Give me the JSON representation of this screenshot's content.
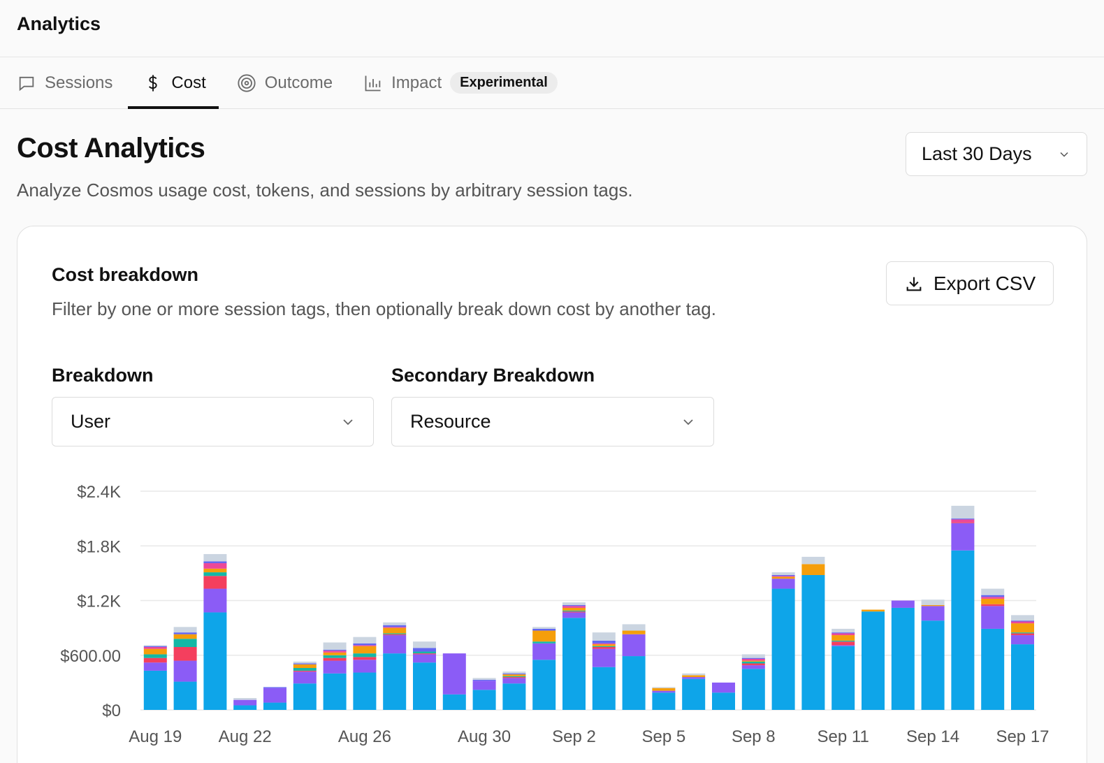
{
  "header": {
    "title": "Analytics"
  },
  "tabs": [
    {
      "label": "Sessions",
      "icon": "message-square-icon"
    },
    {
      "label": "Cost",
      "icon": "dollar-icon"
    },
    {
      "label": "Outcome",
      "icon": "target-icon"
    },
    {
      "label": "Impact",
      "icon": "bar-chart-icon",
      "badge": "Experimental"
    }
  ],
  "page": {
    "title": "Cost Analytics",
    "subtitle": "Analyze Cosmos usage cost, tokens, and sessions by arbitrary session tags.",
    "range": "Last 30 Days"
  },
  "card": {
    "title": "Cost breakdown",
    "subtitle": "Filter by one or more session tags, then optionally break down cost by another tag.",
    "export_label": "Export CSV",
    "breakdown_label": "Breakdown",
    "breakdown_value": "User",
    "secondary_label": "Secondary Breakdown",
    "secondary_value": "Resource"
  },
  "colors": {
    "blue": "#0ea5e9",
    "purple": "#8b5cf6",
    "red": "#f43f5e",
    "teal": "#14b8a6",
    "orange": "#f59e0b",
    "pink": "#ec4899",
    "indigo": "#6366f1",
    "gray": "#cbd5e1"
  },
  "chart_data": {
    "type": "bar",
    "stacked": true,
    "yticks": [
      "$0",
      "$600.00",
      "$1.2K",
      "$1.8K",
      "$2.4K"
    ],
    "ylim": [
      0,
      2400
    ],
    "grid": true,
    "xticks": [
      "Aug 19",
      "Aug 22",
      "Aug 26",
      "Aug 30",
      "Sep 2",
      "Sep 5",
      "Sep 8",
      "Sep 11",
      "Sep 14",
      "Sep 17"
    ],
    "xtick_index": [
      0,
      3,
      7,
      11,
      14,
      17,
      20,
      23,
      26,
      29
    ],
    "categories": [
      "Aug 19",
      "Aug 20",
      "Aug 21",
      "Aug 22",
      "Aug 23",
      "Aug 24",
      "Aug 25",
      "Aug 26",
      "Aug 27",
      "Aug 28",
      "Aug 29",
      "Aug 30",
      "Aug 31",
      "Sep 1",
      "Sep 2",
      "Sep 3",
      "Sep 4",
      "Sep 5",
      "Sep 6",
      "Sep 7",
      "Sep 8",
      "Sep 9",
      "Sep 10",
      "Sep 11",
      "Sep 12",
      "Sep 13",
      "Sep 14",
      "Sep 15",
      "Sep 16",
      "Sep 17"
    ],
    "series_colors": [
      "blue",
      "purple",
      "red",
      "teal",
      "orange",
      "pink",
      "indigo",
      "gray"
    ],
    "series": [
      {
        "values": [
          430,
          310,
          1070,
          50,
          80,
          290,
          400,
          410,
          620,
          520,
          170,
          220,
          290,
          550,
          1010,
          470,
          590,
          190,
          340,
          190,
          450,
          1330,
          1480,
          700,
          1080,
          1120,
          980,
          1750,
          890,
          720
        ]
      },
      {
        "values": [
          90,
          230,
          260,
          60,
          160,
          130,
          140,
          140,
          200,
          90,
          450,
          100,
          60,
          180,
          60,
          200,
          240,
          20,
          20,
          110,
          40,
          110,
          0,
          10,
          0,
          80,
          160,
          300,
          250,
          100
        ]
      },
      {
        "values": [
          50,
          150,
          140,
          0,
          0,
          10,
          30,
          30,
          10,
          10,
          0,
          0,
          10,
          0,
          10,
          20,
          0,
          0,
          0,
          0,
          20,
          0,
          0,
          40,
          0,
          0,
          0,
          10,
          20,
          20
        ]
      },
      {
        "values": [
          40,
          90,
          40,
          0,
          0,
          30,
          30,
          40,
          10,
          20,
          0,
          0,
          10,
          20,
          10,
          10,
          0,
          0,
          0,
          0,
          20,
          0,
          0,
          10,
          0,
          0,
          0,
          0,
          0,
          10
        ]
      },
      {
        "values": [
          60,
          50,
          40,
          0,
          0,
          40,
          30,
          80,
          60,
          0,
          0,
          0,
          20,
          120,
          30,
          20,
          40,
          30,
          20,
          0,
          10,
          20,
          120,
          60,
          20,
          0,
          10,
          0,
          60,
          100
        ]
      },
      {
        "values": [
          20,
          0,
          60,
          0,
          0,
          0,
          20,
          10,
          10,
          0,
          0,
          0,
          0,
          0,
          20,
          10,
          0,
          0,
          0,
          0,
          20,
          10,
          0,
          20,
          0,
          0,
          0,
          30,
          20,
          20
        ]
      },
      {
        "values": [
          10,
          20,
          20,
          0,
          10,
          10,
          10,
          20,
          20,
          40,
          0,
          10,
          10,
          20,
          10,
          30,
          0,
          0,
          0,
          0,
          10,
          10,
          0,
          10,
          0,
          0,
          0,
          10,
          20,
          10
        ]
      },
      {
        "values": [
          10,
          60,
          80,
          20,
          0,
          20,
          80,
          70,
          30,
          70,
          0,
          20,
          20,
          20,
          30,
          90,
          70,
          10,
          20,
          0,
          40,
          30,
          80,
          40,
          0,
          0,
          60,
          140,
          70,
          60
        ]
      }
    ]
  }
}
